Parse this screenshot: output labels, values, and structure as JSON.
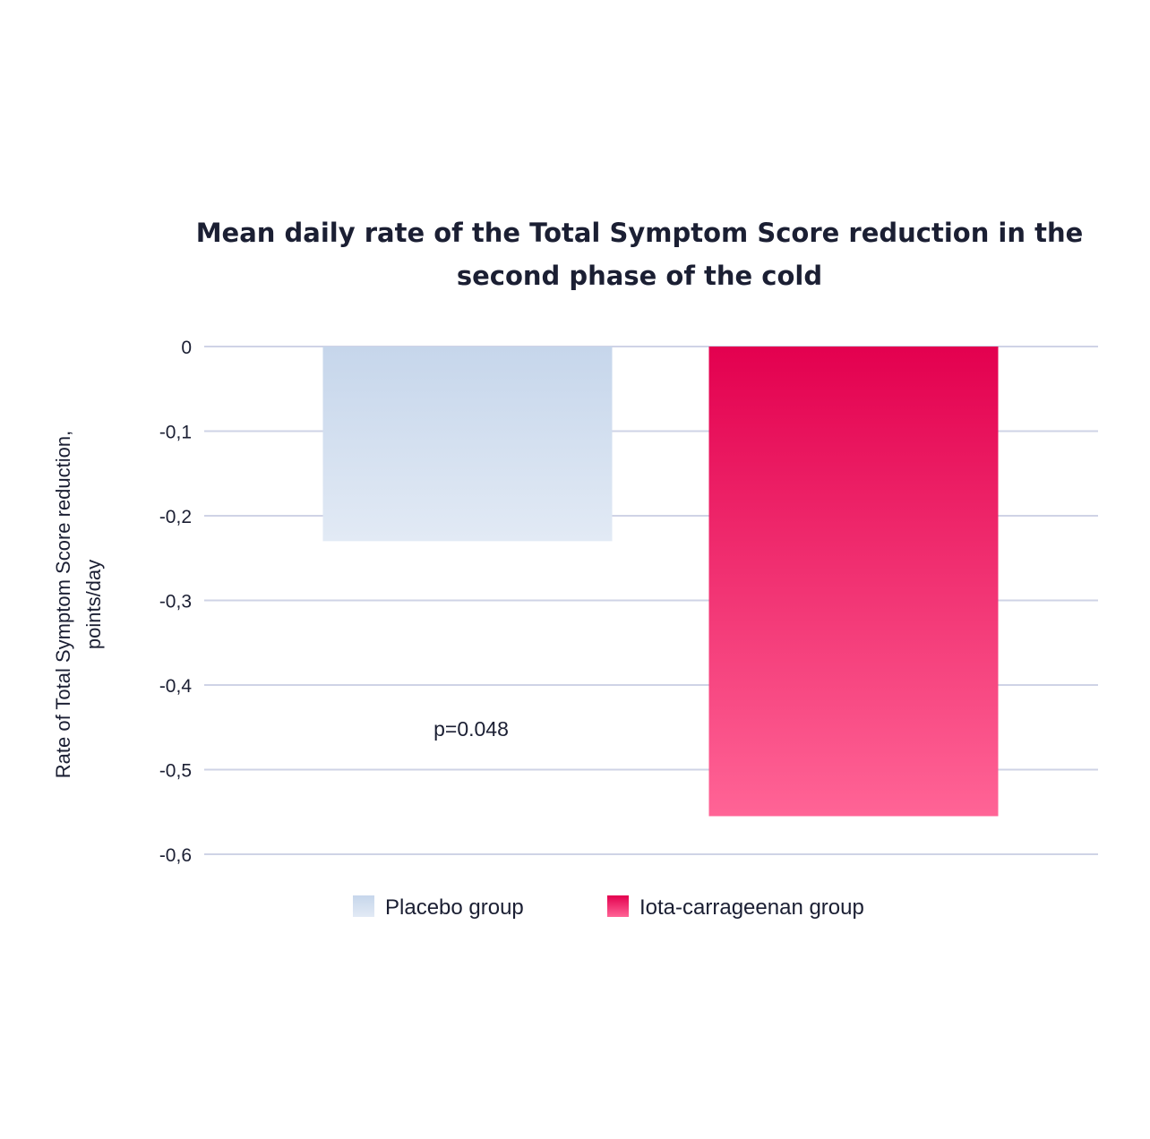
{
  "chart_data": {
    "type": "bar",
    "title_lines": [
      "Mean daily rate of the Total Symptom Score reduction in the",
      "second phase of the cold"
    ],
    "ylabel_lines": [
      "Rate of Total Symptom Score reduction,",
      "points/day"
    ],
    "xlabel": "",
    "ylim": [
      -0.6,
      0
    ],
    "yticks": [
      0,
      -0.1,
      -0.2,
      -0.3,
      -0.4,
      -0.5,
      -0.6
    ],
    "ytick_labels": [
      "0",
      "-0,1",
      "-0,2",
      "-0,3",
      "-0,4",
      "-0,5",
      "-0,6"
    ],
    "grid": true,
    "legend_position": "bottom",
    "series": [
      {
        "name": "Placebo group",
        "value": -0.23,
        "color_top": "#c6d6eb",
        "color_bottom": "#e2eaf5"
      },
      {
        "name": "Iota-carrageenan group",
        "value": -0.555,
        "color_top": "#e3004f",
        "color_bottom": "#ff6496"
      }
    ],
    "annotations": [
      {
        "text": "p=0.048"
      }
    ]
  }
}
